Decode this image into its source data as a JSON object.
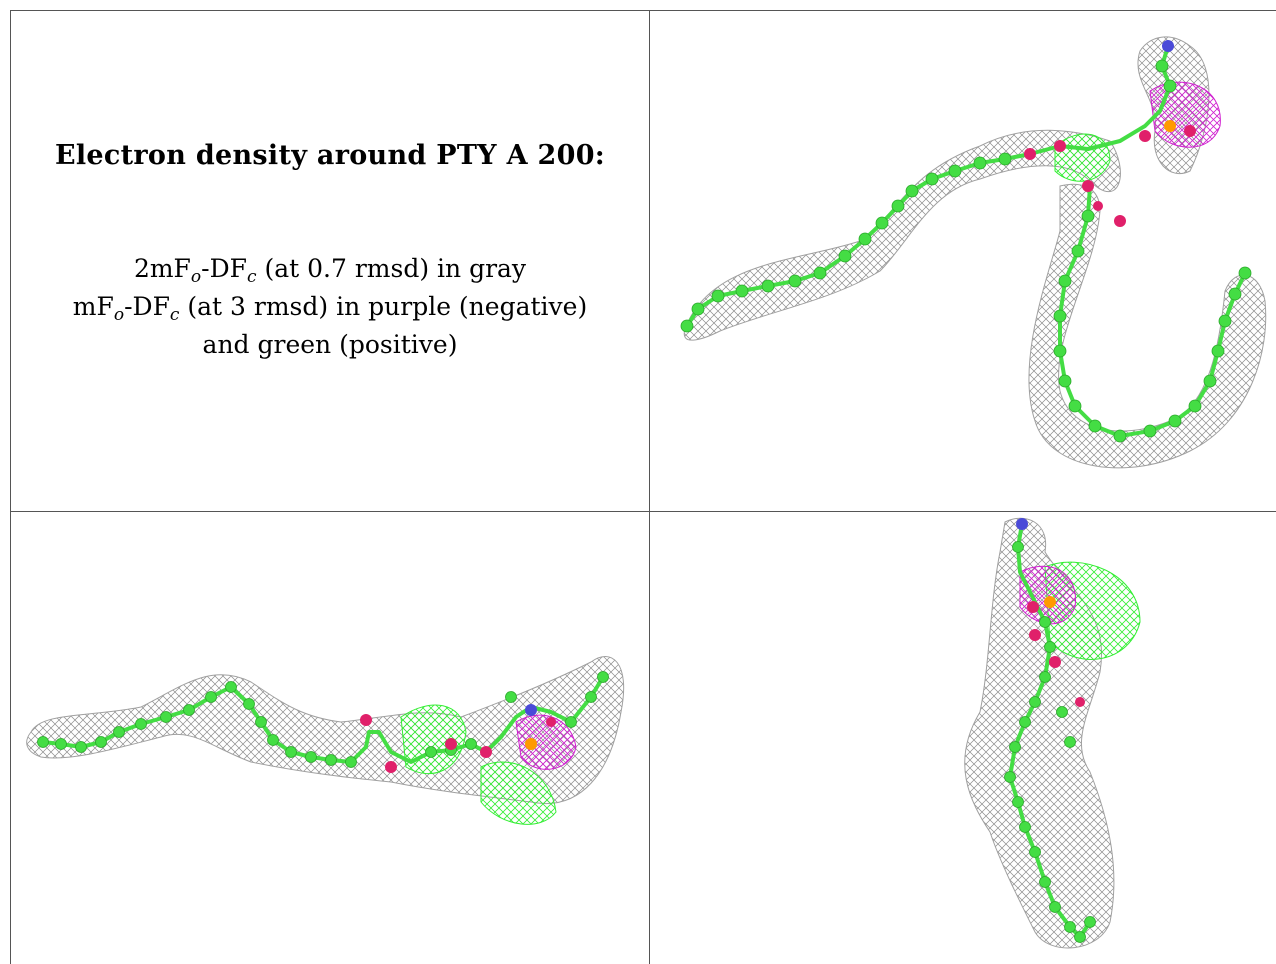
{
  "caption": {
    "title": "Electron density around PTY A 200:",
    "line1": {
      "pre": "2mF",
      "s1": "o",
      "mid": "-DF",
      "s2": "c",
      "post": " (at 0.7 rmsd) in gray"
    },
    "line2": {
      "pre": "mF",
      "s1": "o",
      "mid": "-DF",
      "s2": "c",
      "post": " (at 3 rmsd) in purple (negative)"
    },
    "line3": "and green (positive)"
  },
  "legend_colors": {
    "map_2fo_fc": "#9a9a9a",
    "map_fo_fc_negative": "#d020d0",
    "map_fo_fc_positive": "#33ee33",
    "carbon": "#44dd44",
    "oxygen": "#e0206a",
    "nitrogen": "#4a4ad8",
    "phosphorus": "#ff9a00"
  },
  "views": [
    {
      "id": "view-1"
    },
    {
      "id": "view-2"
    },
    {
      "id": "view-3"
    }
  ]
}
